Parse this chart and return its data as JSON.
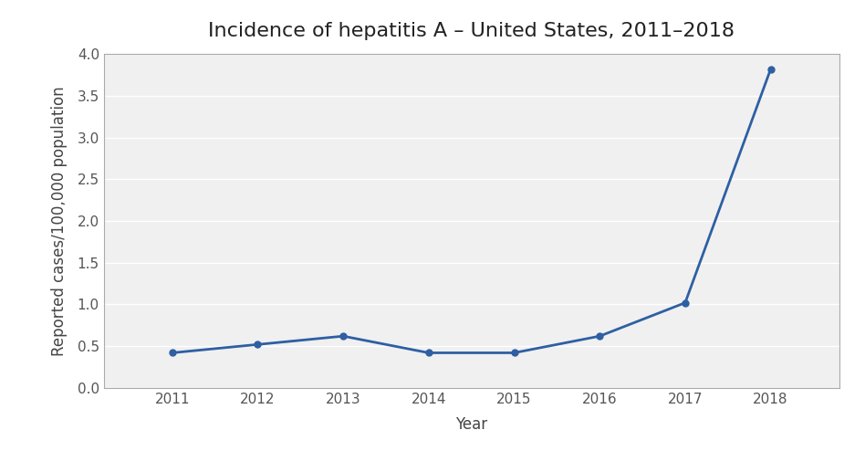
{
  "title": "Incidence of hepatitis A – United States, 2011–2018",
  "xlabel": "Year",
  "ylabel": "Reported cases/100,000 population",
  "years": [
    2011,
    2012,
    2013,
    2014,
    2015,
    2016,
    2017,
    2018
  ],
  "values": [
    0.42,
    0.52,
    0.62,
    0.42,
    0.42,
    0.62,
    1.02,
    3.82
  ],
  "line_color": "#2E5FA3",
  "marker": "o",
  "marker_size": 5,
  "line_width": 2,
  "ylim": [
    0.0,
    4.0
  ],
  "yticks": [
    0.0,
    0.5,
    1.0,
    1.5,
    2.0,
    2.5,
    3.0,
    3.5,
    4.0
  ],
  "background_color": "#ffffff",
  "plot_bg_color": "#f0f0f0",
  "grid_color": "#ffffff",
  "title_fontsize": 16,
  "axis_label_fontsize": 12,
  "tick_fontsize": 11,
  "tick_color": "#555555",
  "border_color": "#aaaaaa"
}
